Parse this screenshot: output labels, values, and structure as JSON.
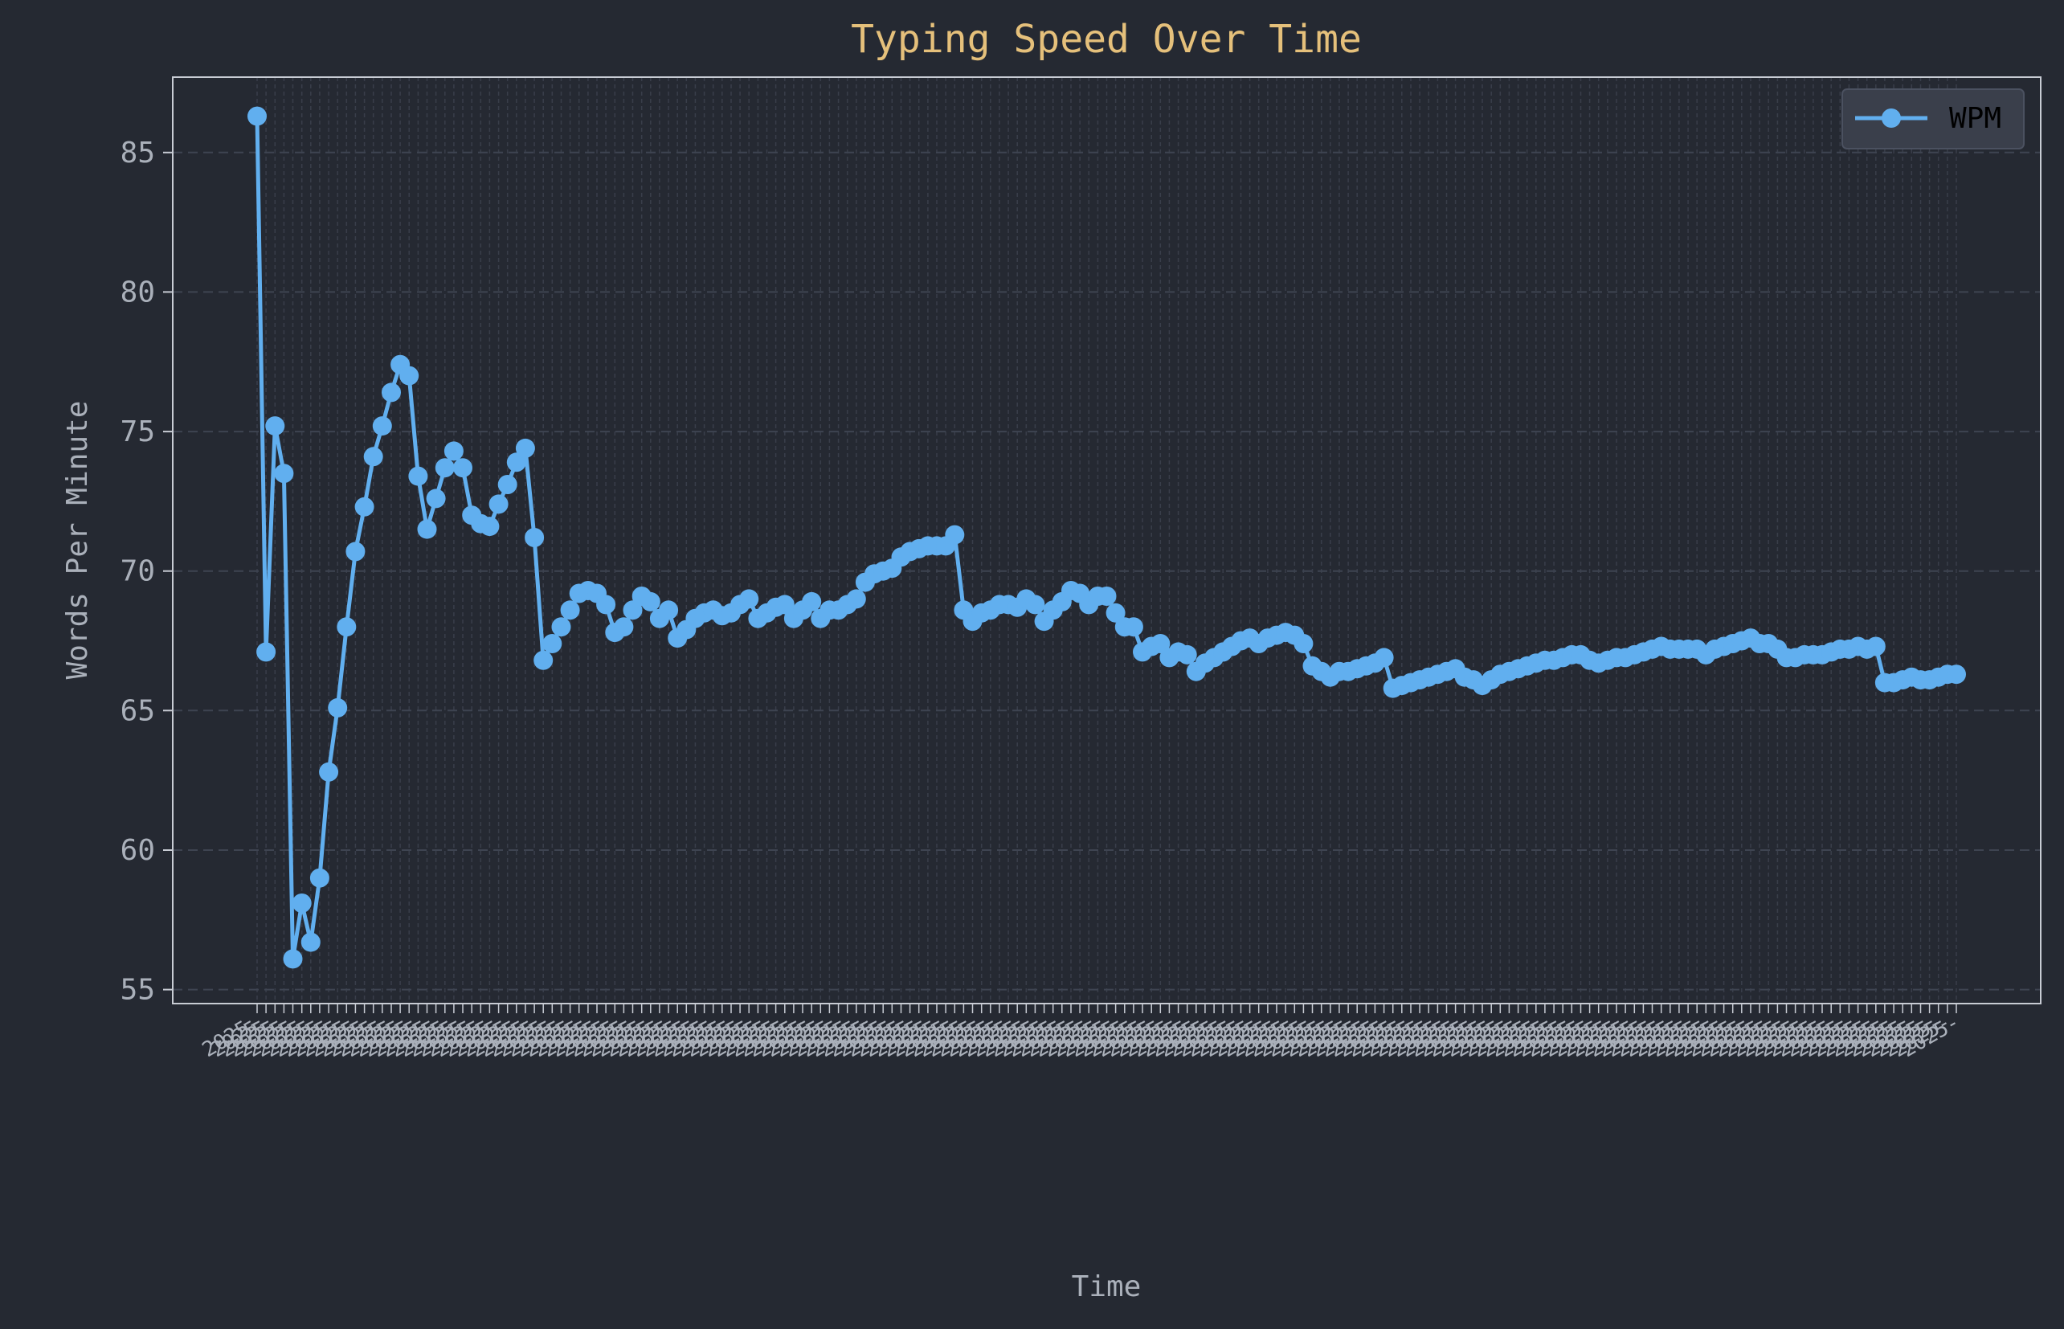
{
  "chart_data": {
    "type": "line",
    "title": "Typing Speed Over Time",
    "xlabel": "Time",
    "ylabel": "Words Per Minute",
    "ylim": [
      54.5,
      87.7
    ],
    "yticks": [
      55,
      60,
      65,
      70,
      75,
      80,
      85
    ],
    "grid": true,
    "legend_placement": "top-right",
    "colors": {
      "background": "#252932",
      "text": "#aab0ba",
      "title": "#e5c07b",
      "series": "#61afef",
      "grid": "#3e4451",
      "axes": "#c8ccd4",
      "legend_bg": "#3a3f4b"
    },
    "x_tick_labels_note": "Overlapping, illegible timestamp tick labels beginning with 2025-",
    "x_tick_label_prefix": "2025-",
    "series": [
      {
        "name": "WPM",
        "values": [
          86.3,
          67.1,
          75.2,
          73.5,
          56.1,
          58.1,
          56.7,
          59.0,
          62.8,
          65.1,
          68.0,
          70.7,
          72.3,
          74.1,
          75.2,
          76.4,
          77.4,
          77.0,
          73.4,
          71.5,
          72.6,
          73.7,
          74.3,
          73.7,
          72.0,
          71.7,
          71.6,
          72.4,
          73.1,
          73.9,
          74.4,
          71.2,
          66.8,
          67.4,
          68.0,
          68.6,
          69.2,
          69.3,
          69.2,
          68.8,
          67.8,
          68.0,
          68.6,
          69.1,
          68.9,
          68.3,
          68.6,
          67.6,
          67.9,
          68.3,
          68.5,
          68.6,
          68.4,
          68.5,
          68.8,
          69.0,
          68.3,
          68.5,
          68.7,
          68.8,
          68.3,
          68.6,
          68.9,
          68.3,
          68.6,
          68.6,
          68.8,
          69.0,
          69.6,
          69.9,
          70.0,
          70.1,
          70.5,
          70.7,
          70.8,
          70.9,
          70.9,
          70.9,
          71.3,
          68.6,
          68.2,
          68.5,
          68.6,
          68.8,
          68.8,
          68.7,
          69.0,
          68.8,
          68.2,
          68.6,
          68.9,
          69.3,
          69.2,
          68.8,
          69.1,
          69.1,
          68.5,
          68.0,
          68.0,
          67.1,
          67.3,
          67.4,
          66.9,
          67.1,
          67.0,
          66.4,
          66.7,
          66.9,
          67.1,
          67.3,
          67.5,
          67.6,
          67.4,
          67.6,
          67.7,
          67.8,
          67.7,
          67.4,
          66.6,
          66.4,
          66.2,
          66.4,
          66.4,
          66.5,
          66.6,
          66.7,
          66.9,
          65.8,
          65.9,
          66.0,
          66.1,
          66.2,
          66.3,
          66.4,
          66.5,
          66.2,
          66.1,
          65.9,
          66.1,
          66.3,
          66.4,
          66.5,
          66.6,
          66.7,
          66.8,
          66.8,
          66.9,
          67.0,
          67.0,
          66.8,
          66.7,
          66.8,
          66.9,
          66.9,
          67.0,
          67.1,
          67.2,
          67.3,
          67.2,
          67.2,
          67.2,
          67.2,
          67.0,
          67.2,
          67.3,
          67.4,
          67.5,
          67.6,
          67.4,
          67.4,
          67.2,
          66.9,
          66.9,
          67.0,
          67.0,
          67.0,
          67.1,
          67.2,
          67.2,
          67.3,
          67.2,
          67.3,
          66.0,
          66.0,
          66.1,
          66.2,
          66.1,
          66.1,
          66.2,
          66.3,
          66.3
        ]
      }
    ]
  }
}
